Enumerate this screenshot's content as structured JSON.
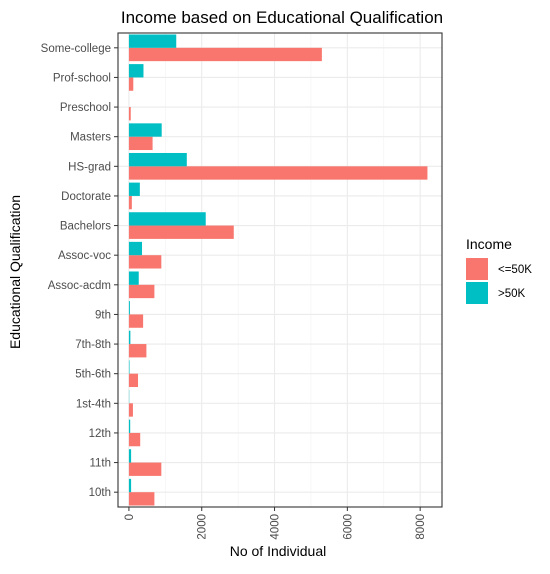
{
  "chart_data": {
    "type": "bar",
    "orientation": "horizontal",
    "title": "Income based on Educational Qualification",
    "xlabel": "No of Individual",
    "ylabel": "Educational Qualification",
    "categories": [
      "10th",
      "11th",
      "12th",
      "1st-4th",
      "5th-6th",
      "7th-8th",
      "9th",
      "Assoc-acdm",
      "Assoc-voc",
      "Bachelors",
      "Doctorate",
      "HS-grad",
      "Masters",
      "Preschool",
      "Prof-school",
      "Some-college"
    ],
    "x_ticks": [
      0,
      2000,
      4000,
      6000,
      8000
    ],
    "x_tick_labels": [
      "0",
      "2000",
      "4000",
      "6000",
      "8000"
    ],
    "xlim": [
      -300,
      8600
    ],
    "series": [
      {
        "name": "<=50K",
        "color": "#F8766D",
        "values": [
          700,
          890,
          310,
          110,
          250,
          480,
          390,
          700,
          890,
          2880,
          80,
          8200,
          650,
          50,
          120,
          5300
        ]
      },
      {
        "name": ">50K",
        "color": "#00BFC4",
        "values": [
          60,
          60,
          35,
          8,
          16,
          40,
          27,
          270,
          360,
          2110,
          300,
          1590,
          900,
          0,
          400,
          1300
        ]
      }
    ],
    "legend": {
      "title": "Income",
      "position": "right"
    },
    "grid": true
  }
}
